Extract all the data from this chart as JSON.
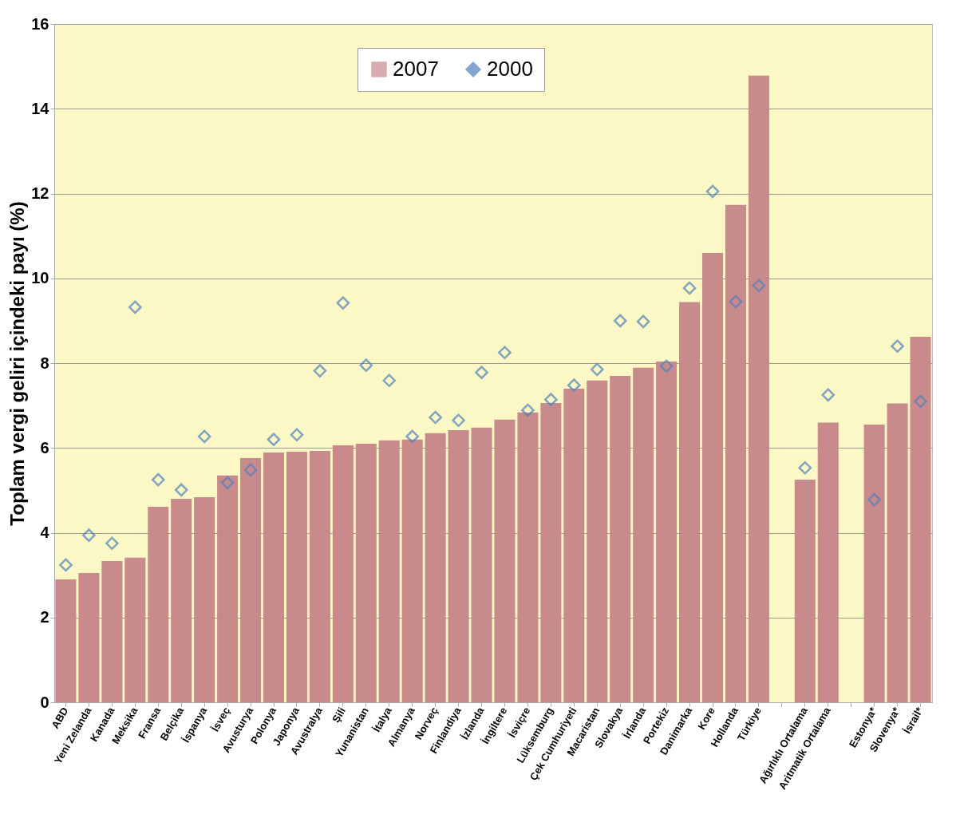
{
  "chart_data": {
    "type": "bar",
    "ylabel": "Toplam vergi geliri içindeki payı (%)",
    "categories": [
      "ABD",
      "Yeni Zelanda",
      "Kanada",
      "Meksika",
      "Fransa",
      "Belçika",
      "İspanya",
      "İsveç",
      "Avusturya",
      "Polonya",
      "Japonya",
      "Avustralya",
      "Şili",
      "Yunanistan",
      "İtalya",
      "Almanya",
      "Norveç",
      "Finlandiya",
      "İzlanda",
      "İngiltere",
      "İsviçre",
      "Lüksemburg",
      "Çek Cumhuriyeti",
      "Macaristan",
      "Slovakya",
      "İrlanda",
      "Portekiz",
      "Danimarka",
      "Kore",
      "Hollanda",
      "Türkiye",
      null,
      "Ağırlıklı Ortalama",
      "Aritmatik Ortalama",
      null,
      "Estonya*",
      "Slovenya*",
      "İsrail*"
    ],
    "series": [
      {
        "name": "2007",
        "color": "#c98a8c",
        "values": [
          2.9,
          3.05,
          3.33,
          3.41,
          4.61,
          4.8,
          4.84,
          5.35,
          5.76,
          5.89,
          5.91,
          5.93,
          6.06,
          6.1,
          6.18,
          6.2,
          6.35,
          6.42,
          6.48,
          6.67,
          6.84,
          7.06,
          7.4,
          7.59,
          7.7,
          7.89,
          8.04,
          9.44,
          10.6,
          11.73,
          14.78,
          null,
          5.25,
          6.6,
          null,
          6.55,
          7.05,
          8.62
        ]
      },
      {
        "name": "2000",
        "type": "scatter",
        "color": "#4f81bd",
        "values": [
          3.24,
          3.94,
          3.75,
          9.32,
          5.25,
          5.01,
          6.27,
          5.18,
          5.48,
          6.2,
          6.31,
          7.82,
          9.42,
          7.95,
          7.59,
          6.27,
          6.72,
          6.65,
          7.78,
          8.25,
          6.89,
          7.14,
          7.48,
          7.85,
          9.0,
          8.98,
          7.93,
          9.77,
          12.05,
          9.45,
          9.83,
          null,
          5.53,
          7.25,
          null,
          4.78,
          8.4,
          7.1
        ]
      }
    ],
    "ylim": [
      0,
      16
    ],
    "yticks": [
      0,
      2,
      4,
      6,
      8,
      10,
      12,
      14,
      16
    ],
    "grid": "y",
    "legend": "top",
    "marker": "diamond"
  }
}
